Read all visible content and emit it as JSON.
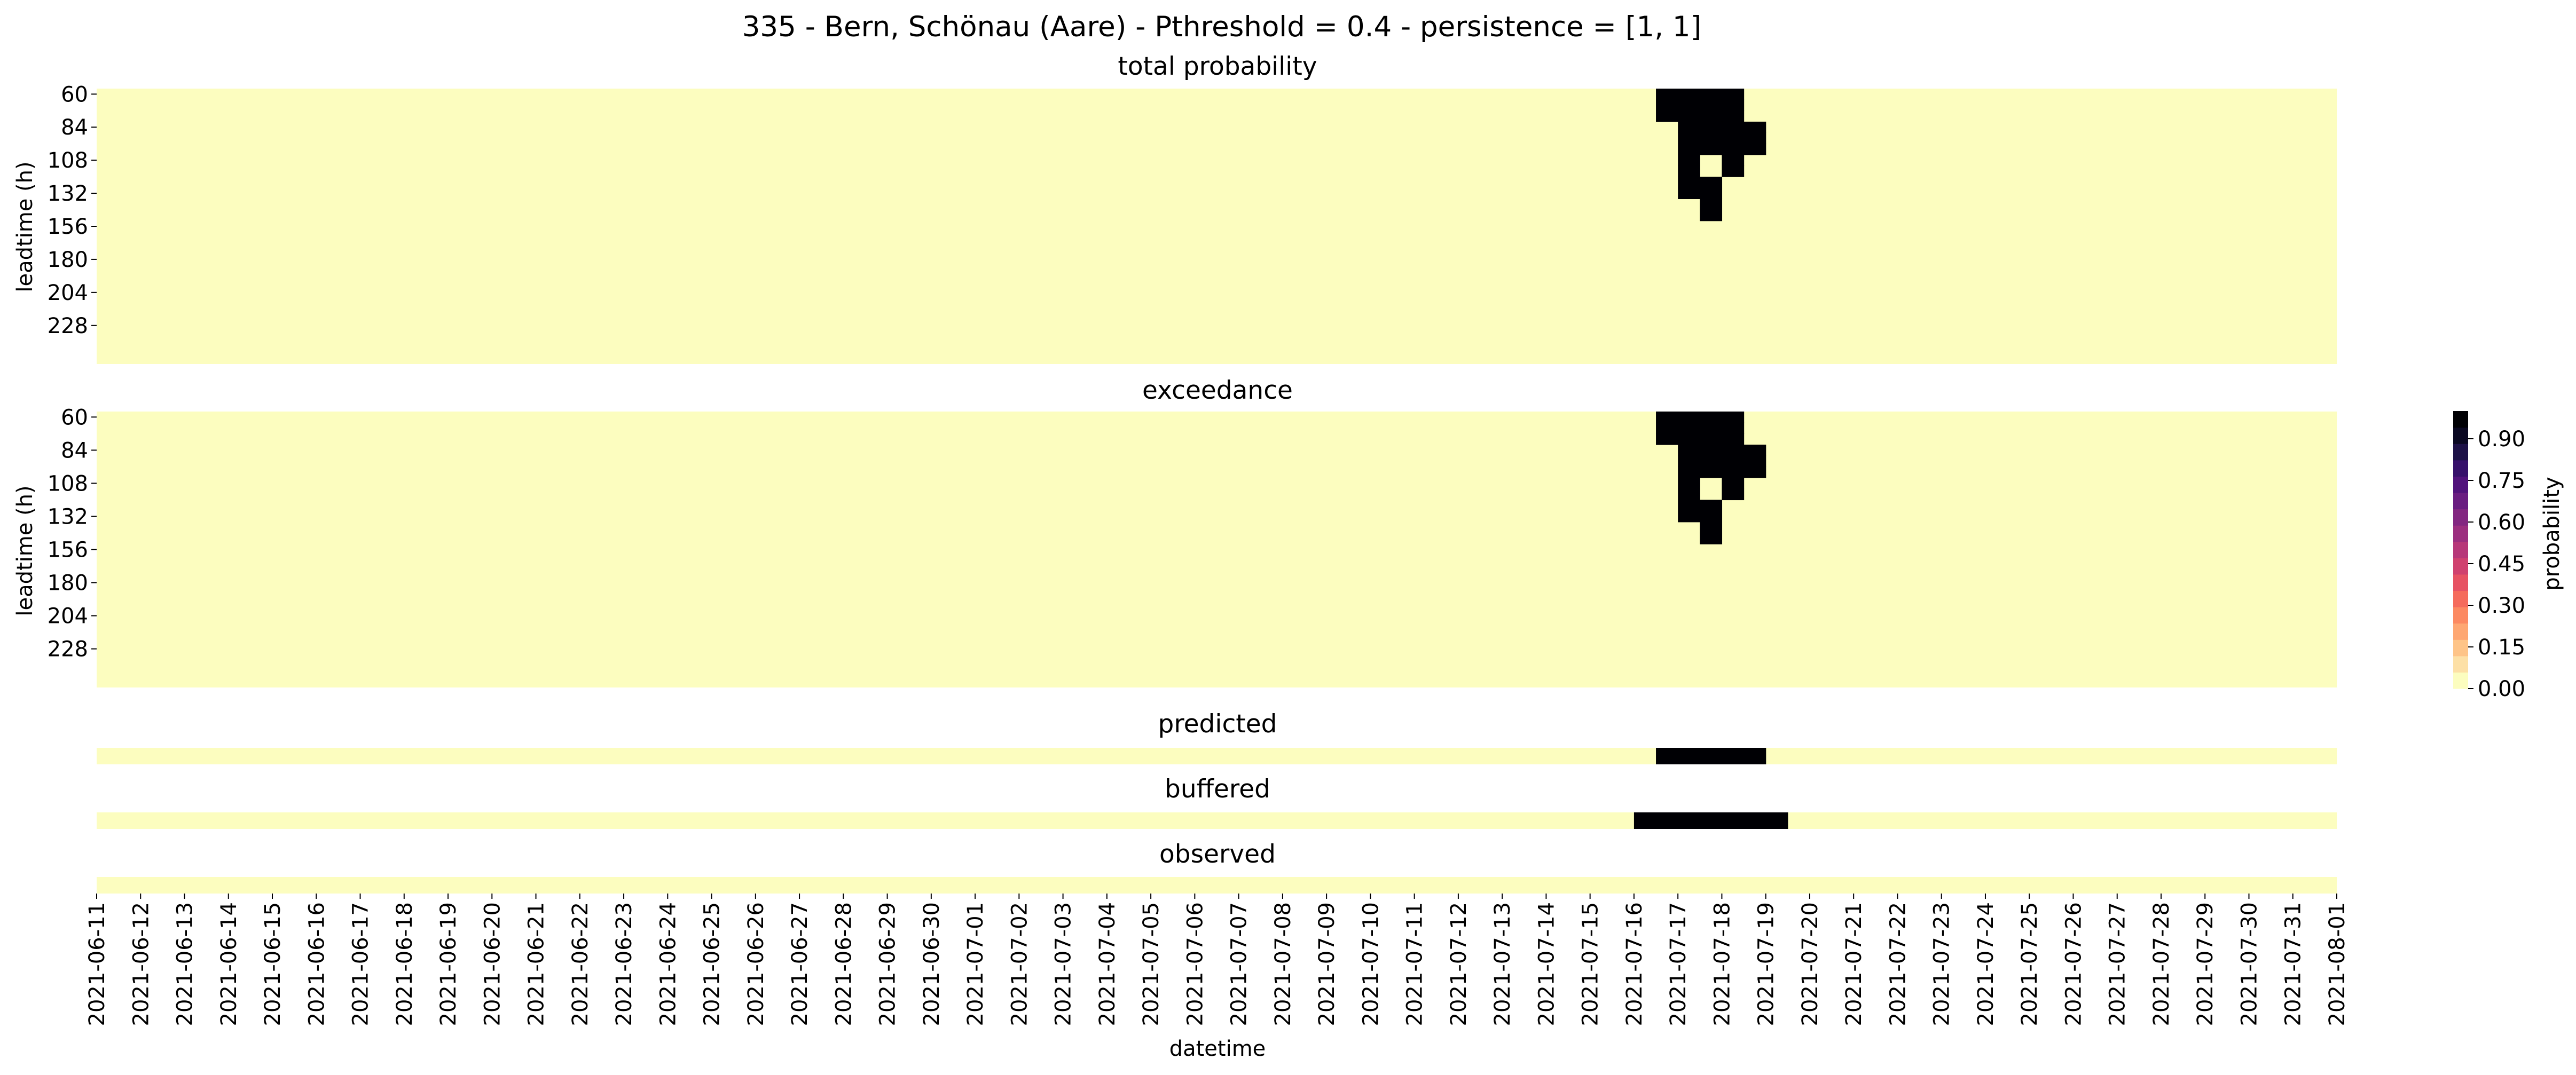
{
  "figure": {
    "suptitle": "335 - Bern, Schönau (Aare) - Pthreshold = 0.4 - persistence = [1, 1]"
  },
  "colors": {
    "low": "#fcfdbf",
    "high": "#000004",
    "colormap": [
      "#fcfdbf",
      "#fde0a6",
      "#fec488",
      "#fea772",
      "#fc8961",
      "#f56b5c",
      "#e75263",
      "#d0416f",
      "#b73779",
      "#9c2e7f",
      "#832681",
      "#6a1c81",
      "#51127c",
      "#36106b",
      "#1d1147",
      "#0a0822",
      "#000004"
    ]
  },
  "chart_data": [
    {
      "type": "heatmap",
      "title": "total probability",
      "ylabel": "leadtime (h)",
      "yticks": [
        60,
        84,
        108,
        132,
        156,
        180,
        204,
        228
      ],
      "rows": 25,
      "columns": 102,
      "exceed_value": 1.0,
      "exceed_cells": [
        {
          "rows": [
            0,
            1,
            2
          ],
          "cols": [
            71,
            72,
            73,
            74
          ]
        },
        {
          "rows": [
            3,
            4,
            5
          ],
          "cols": [
            72,
            73,
            74,
            75
          ]
        },
        {
          "rows": [
            6,
            7
          ],
          "cols": [
            72,
            74
          ]
        },
        {
          "rows": [
            8,
            9
          ],
          "cols": [
            72,
            73
          ]
        },
        {
          "rows": [
            10,
            11
          ],
          "cols": [
            73
          ]
        }
      ]
    },
    {
      "type": "heatmap",
      "title": "exceedance",
      "ylabel": "leadtime (h)",
      "yticks": [
        60,
        84,
        108,
        132,
        156,
        180,
        204,
        228
      ],
      "rows": 25,
      "columns": 102,
      "exceed_value": 1.0,
      "exceed_cells": [
        {
          "rows": [
            0,
            1,
            2
          ],
          "cols": [
            71,
            72,
            73,
            74
          ]
        },
        {
          "rows": [
            3,
            4,
            5
          ],
          "cols": [
            72,
            73,
            74,
            75
          ]
        },
        {
          "rows": [
            6,
            7
          ],
          "cols": [
            72,
            74
          ]
        },
        {
          "rows": [
            8,
            9
          ],
          "cols": [
            72,
            73
          ]
        },
        {
          "rows": [
            10,
            11
          ],
          "cols": [
            73
          ]
        }
      ]
    },
    {
      "type": "heatmap",
      "title": "predicted",
      "rows": 1,
      "columns": 102,
      "exceed_value": 1.0,
      "exceed_cols": [
        71,
        72,
        73,
        74,
        75
      ]
    },
    {
      "type": "heatmap",
      "title": "buffered",
      "rows": 1,
      "columns": 102,
      "exceed_value": 1.0,
      "exceed_cols": [
        70,
        71,
        72,
        73,
        74,
        75,
        76
      ]
    },
    {
      "type": "heatmap",
      "title": "observed",
      "rows": 1,
      "columns": 102,
      "exceed_value": 1.0,
      "exceed_cols": []
    }
  ],
  "x_axis": {
    "xlabel": "datetime",
    "xticks": [
      "2021-06-11",
      "2021-06-12",
      "2021-06-13",
      "2021-06-14",
      "2021-06-15",
      "2021-06-16",
      "2021-06-17",
      "2021-06-18",
      "2021-06-19",
      "2021-06-20",
      "2021-06-21",
      "2021-06-22",
      "2021-06-23",
      "2021-06-24",
      "2021-06-25",
      "2021-06-26",
      "2021-06-27",
      "2021-06-28",
      "2021-06-29",
      "2021-06-30",
      "2021-07-01",
      "2021-07-02",
      "2021-07-03",
      "2021-07-04",
      "2021-07-05",
      "2021-07-06",
      "2021-07-07",
      "2021-07-08",
      "2021-07-09",
      "2021-07-10",
      "2021-07-11",
      "2021-07-12",
      "2021-07-13",
      "2021-07-14",
      "2021-07-15",
      "2021-07-16",
      "2021-07-17",
      "2021-07-18",
      "2021-07-19",
      "2021-07-20",
      "2021-07-21",
      "2021-07-22",
      "2021-07-23",
      "2021-07-24",
      "2021-07-25",
      "2021-07-26",
      "2021-07-27",
      "2021-07-28",
      "2021-07-29",
      "2021-07-30",
      "2021-07-31",
      "2021-08-01"
    ]
  },
  "colorbar": {
    "label": "probability",
    "ticks": [
      "0.00",
      "0.15",
      "0.30",
      "0.45",
      "0.60",
      "0.75",
      "0.90"
    ],
    "range": [
      0,
      1
    ]
  }
}
